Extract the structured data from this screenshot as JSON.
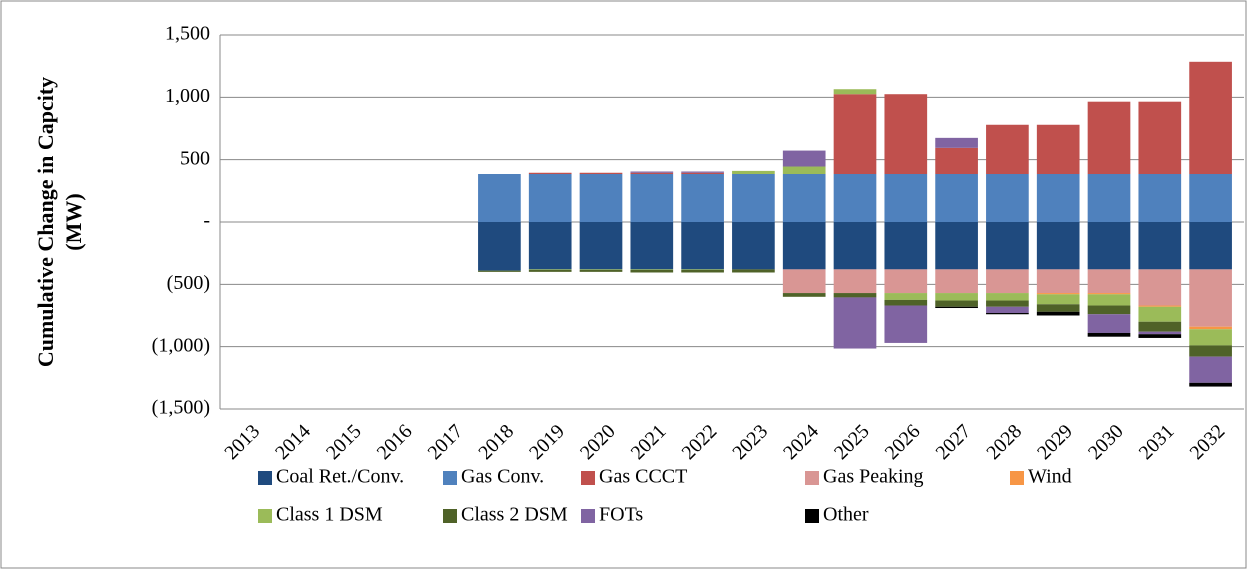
{
  "chart_data": {
    "type": "bar",
    "y_label": [
      "Cumulative Change in Capcity",
      "(MW)"
    ],
    "categories": [
      "2013",
      "2014",
      "2015",
      "2016",
      "2017",
      "2018",
      "2019",
      "2020",
      "2021",
      "2022",
      "2023",
      "2024",
      "2025",
      "2026",
      "2027",
      "2028",
      "2029",
      "2030",
      "2031",
      "2032"
    ],
    "series": [
      {
        "name": "Coal Ret./Conv.",
        "color": "#1f4a7e",
        "values": [
          0,
          0,
          0,
          0,
          0,
          -390,
          -380,
          -380,
          -380,
          -380,
          -380,
          -380,
          -380,
          -380,
          -380,
          -380,
          -380,
          -380,
          -380,
          -380
        ]
      },
      {
        "name": "Gas Conv.",
        "color": "#4f81bd",
        "values": [
          0,
          0,
          0,
          0,
          0,
          385,
          385,
          385,
          385,
          385,
          385,
          385,
          385,
          385,
          385,
          385,
          385,
          385,
          385,
          385
        ]
      },
      {
        "name": "Gas CCCT",
        "color": "#c0504d",
        "values": [
          0,
          0,
          0,
          0,
          0,
          0,
          10,
          10,
          10,
          10,
          0,
          0,
          640,
          640,
          210,
          395,
          395,
          580,
          580,
          900
        ]
      },
      {
        "name": "Gas Peaking",
        "color": "#d99694",
        "values": [
          0,
          0,
          0,
          0,
          0,
          0,
          0,
          0,
          0,
          0,
          0,
          -190,
          -190,
          -190,
          -190,
          -190,
          -190,
          -190,
          -290,
          -460
        ]
      },
      {
        "name": "Wind",
        "color": "#f79646",
        "values": [
          0,
          0,
          0,
          0,
          0,
          0,
          0,
          0,
          0,
          0,
          0,
          0,
          0,
          0,
          0,
          0,
          -10,
          -10,
          -10,
          -20
        ]
      },
      {
        "name": "Class 1 DSM",
        "color": "#9bbb59",
        "values": [
          0,
          0,
          0,
          0,
          0,
          0,
          -5,
          -5,
          -5,
          -5,
          25,
          60,
          40,
          -55,
          -60,
          -60,
          -80,
          -90,
          -120,
          -130
        ]
      },
      {
        "name": "Class 2 DSM",
        "color": "#4f6228",
        "values": [
          0,
          0,
          0,
          0,
          0,
          -10,
          -15,
          -15,
          -20,
          -20,
          -25,
          -30,
          -35,
          -45,
          -50,
          -50,
          -60,
          -70,
          -80,
          -90
        ]
      },
      {
        "name": "FOTs",
        "color": "#8064a2",
        "values": [
          0,
          0,
          0,
          0,
          0,
          0,
          0,
          0,
          10,
          10,
          0,
          128,
          -410,
          -300,
          80,
          -50,
          0,
          -150,
          -20,
          -210
        ]
      },
      {
        "name": "Other",
        "color": "#000000",
        "values": [
          0,
          0,
          0,
          0,
          0,
          0,
          0,
          0,
          0,
          0,
          0,
          0,
          0,
          0,
          -10,
          -10,
          -30,
          -30,
          -30,
          -30
        ]
      }
    ],
    "ylim": [
      -1500,
      1500
    ],
    "yticks": [
      {
        "value": -1500,
        "label": "(1,500)"
      },
      {
        "value": -1000,
        "label": "(1,000)"
      },
      {
        "value": -500,
        "label": "(500)"
      },
      {
        "value": 0,
        "label": "-"
      },
      500,
      {
        "value": 1000,
        "label": "1,000"
      },
      {
        "value": 1500,
        "label": "1,500"
      }
    ],
    "grid": true,
    "stacked": true,
    "legend": "bottom"
  }
}
